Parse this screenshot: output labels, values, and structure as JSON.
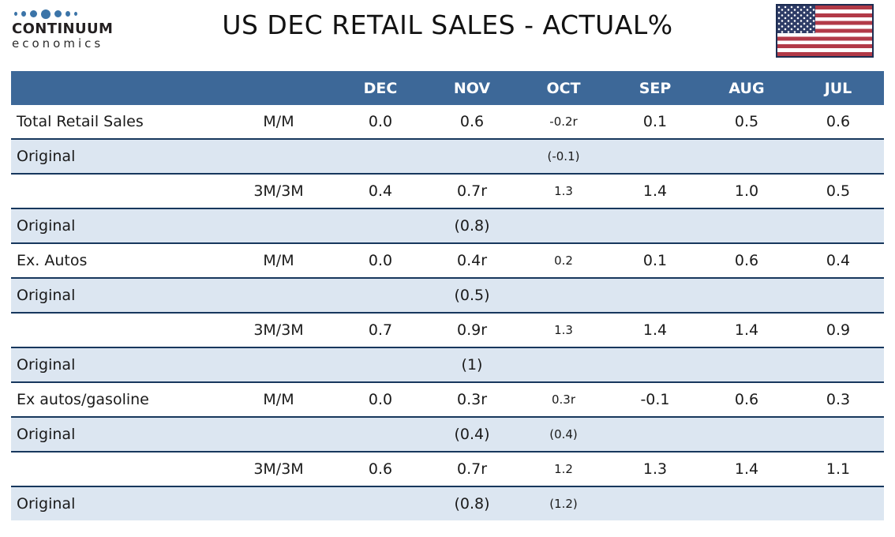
{
  "logo": {
    "name": "CONTINUUM",
    "tagline": "economics",
    "dot_color": "#3B74A8"
  },
  "header": {
    "title": "US DEC RETAIL SALES - ACTUAL%"
  },
  "flag_colors": {
    "red": "#B23A48",
    "blue": "#2E3C66",
    "border": "#1D2D52"
  },
  "table_style": {
    "header_bg": "#3D6898",
    "header_text": "#FFFFFF",
    "shaded_row_bg": "#DCE6F1",
    "border_color": "#17375D"
  },
  "chart_data": {
    "type": "table",
    "title": "US DEC RETAIL SALES - ACTUAL%",
    "columns": [
      "DEC",
      "NOV",
      "OCT",
      "SEP",
      "AUG",
      "JUL"
    ],
    "rows": [
      {
        "label": "Total Retail Sales",
        "measure": "M/M",
        "values": [
          "0.0",
          "0.6",
          "-0.2r",
          "0.1",
          "0.5",
          "0.6"
        ],
        "shaded": false
      },
      {
        "label": "Original",
        "measure": "",
        "values": [
          "",
          "",
          "(-0.1)",
          "",
          "",
          ""
        ],
        "shaded": true
      },
      {
        "label": "",
        "measure": "3M/3M",
        "values": [
          "0.4",
          "0.7r",
          "1.3",
          "1.4",
          "1.0",
          "0.5"
        ],
        "shaded": false
      },
      {
        "label": "Original",
        "measure": "",
        "values": [
          "",
          "(0.8)",
          "",
          "",
          "",
          ""
        ],
        "shaded": true
      },
      {
        "label": "Ex. Autos",
        "measure": "M/M",
        "values": [
          "0.0",
          "0.4r",
          "0.2",
          "0.1",
          "0.6",
          "0.4"
        ],
        "shaded": false
      },
      {
        "label": "Original",
        "measure": "",
        "values": [
          "",
          "(0.5)",
          "",
          "",
          "",
          ""
        ],
        "shaded": true
      },
      {
        "label": "",
        "measure": "3M/3M",
        "values": [
          "0.7",
          "0.9r",
          "1.3",
          "1.4",
          "1.4",
          "0.9"
        ],
        "shaded": false
      },
      {
        "label": "Original",
        "measure": "",
        "values": [
          "",
          "(1)",
          "",
          "",
          "",
          ""
        ],
        "shaded": true
      },
      {
        "label": "Ex autos/gasoline",
        "measure": "M/M",
        "values": [
          "0.0",
          "0.3r",
          "0.3r",
          "-0.1",
          "0.6",
          "0.3"
        ],
        "shaded": false
      },
      {
        "label": "Original",
        "measure": "",
        "values": [
          "",
          "(0.4)",
          "(0.4)",
          "",
          "",
          ""
        ],
        "shaded": true
      },
      {
        "label": "",
        "measure": "3M/3M",
        "values": [
          "0.6",
          "0.7r",
          "1.2",
          "1.3",
          "1.4",
          "1.1"
        ],
        "shaded": false
      },
      {
        "label": "Original",
        "measure": "",
        "values": [
          "",
          "(0.8)",
          "(1.2)",
          "",
          "",
          ""
        ],
        "shaded": true
      }
    ]
  }
}
